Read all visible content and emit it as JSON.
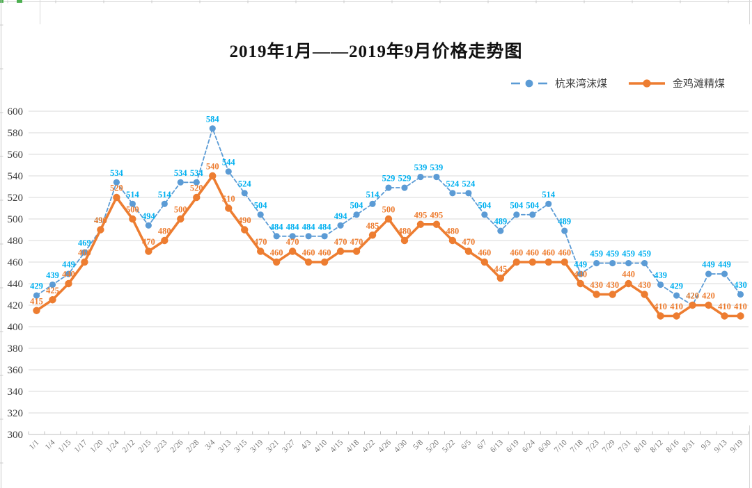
{
  "chart": {
    "title": "2019年1月——2019年9月价格走势图"
  },
  "chart_data": {
    "type": "line",
    "title": "2019年1月——2019年9月价格走势图",
    "categories": [
      "1/1",
      "1/4",
      "1/15",
      "1/17",
      "1/20",
      "1/24",
      "2/12",
      "2/15",
      "2/23",
      "2/26",
      "2/28",
      "3/4",
      "3/13",
      "3/15",
      "3/19",
      "3/21",
      "3/27",
      "4/3",
      "4/10",
      "4/15",
      "4/18",
      "4/22",
      "4/26",
      "4/30",
      "5/8",
      "5/20",
      "5/22",
      "6/5",
      "6/7",
      "6/13",
      "6/19",
      "6/24",
      "6/30",
      "7/10",
      "7/18",
      "7/23",
      "7/29",
      "7/31",
      "8/10",
      "8/12",
      "8/16",
      "8/31",
      "9/3",
      "9/13",
      "9/19"
    ],
    "series": [
      {
        "name": "杭来湾沫煤",
        "line_style": "dashed",
        "marker": "circle",
        "line_color": "#5B9BD5",
        "label_color": "#00B0F0",
        "values": [
          429,
          439,
          449,
          469,
          490,
          534,
          514,
          494,
          514,
          534,
          534,
          584,
          544,
          524,
          504,
          484,
          484,
          484,
          484,
          494,
          504,
          514,
          529,
          529,
          539,
          539,
          524,
          524,
          504,
          489,
          504,
          504,
          514,
          489,
          449,
          459,
          459,
          459,
          459,
          439,
          429,
          420,
          449,
          449,
          430
        ]
      },
      {
        "name": "金鸡滩精煤",
        "line_style": "solid",
        "marker": "circle",
        "line_color": "#ED7D31",
        "label_color": "#ED7D31",
        "values": [
          415,
          425,
          440,
          460,
          490,
          520,
          500,
          470,
          480,
          500,
          520,
          540,
          510,
          490,
          470,
          460,
          470,
          460,
          460,
          470,
          470,
          485,
          500,
          480,
          495,
          495,
          480,
          470,
          460,
          445,
          460,
          460,
          460,
          460,
          440,
          430,
          430,
          440,
          430,
          410,
          410,
          420,
          420,
          410,
          410
        ]
      }
    ],
    "yticks": [
      600,
      580,
      560,
      540,
      520,
      500,
      480,
      460,
      440,
      420,
      400,
      380,
      360,
      340,
      320,
      300
    ],
    "ylim": [
      300,
      600
    ],
    "ytick_interval": 20,
    "grid": true,
    "legend_position": "top-right",
    "data_labels": true,
    "colors": {
      "gridline": "#D9D9D9",
      "axis_line": "#BFBFBF",
      "ytick_label": "#404040",
      "xtick_label": "#767676",
      "title_text": "#111111",
      "legend_text": "#404040",
      "sheet_artifact_line": "#D9D9D9",
      "accent_green": "#4CAF50"
    }
  }
}
